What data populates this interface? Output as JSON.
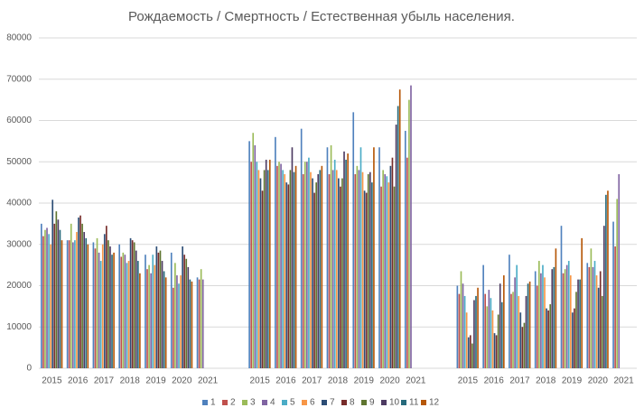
{
  "chart_data": {
    "type": "bar",
    "title": "Рождаемость / Смертность / Естественная убыль населения.",
    "categories": [
      "2015",
      "2016",
      "2017",
      "2018",
      "2019",
      "2020",
      "2021",
      "2015",
      "2016",
      "2017",
      "2018",
      "2019",
      "2020",
      "2021",
      "2015",
      "2016",
      "2017",
      "2018",
      "2019",
      "2020",
      "2021"
    ],
    "series": [
      {
        "name": "1",
        "color": "#4F81BD",
        "values": [
          35000,
          31000,
          30500,
          30000,
          27500,
          28000,
          22000,
          55000,
          56000,
          58000,
          53500,
          62000,
          53500,
          57500,
          20000,
          25000,
          27500,
          23500,
          34500,
          25500,
          35500
        ]
      },
      {
        "name": "2",
        "color": "#C0504D",
        "values": [
          32000,
          31000,
          29000,
          27000,
          24000,
          19500,
          21500,
          50000,
          49000,
          47000,
          47000,
          47000,
          44000,
          51000,
          18000,
          18000,
          18000,
          20000,
          23000,
          24500,
          29500
        ]
      },
      {
        "name": "3",
        "color": "#9BBB59",
        "values": [
          33500,
          35000,
          31500,
          28000,
          25000,
          25500,
          24000,
          57000,
          50000,
          50000,
          54000,
          49000,
          48000,
          65000,
          23500,
          15000,
          18500,
          26000,
          24000,
          29000,
          41000
        ]
      },
      {
        "name": "4",
        "color": "#8064A2",
        "values": [
          34000,
          30500,
          28000,
          27500,
          23000,
          22500,
          21500,
          54000,
          49500,
          50000,
          48000,
          48000,
          47000,
          68500,
          20500,
          19000,
          22000,
          23000,
          25000,
          24500,
          47000
        ]
      },
      {
        "name": "5",
        "color": "#4BACC6",
        "values": [
          32500,
          31000,
          26000,
          25500,
          27500,
          20500,
          null,
          50000,
          48000,
          51000,
          50500,
          53500,
          46500,
          null,
          17500,
          17000,
          25000,
          25000,
          26000,
          26000,
          null
        ]
      },
      {
        "name": "6",
        "color": "#F79646",
        "values": [
          30000,
          33000,
          30000,
          26000,
          25000,
          22500,
          null,
          48000,
          47000,
          47500,
          48000,
          47500,
          45000,
          null,
          13500,
          14000,
          17500,
          22000,
          22500,
          22500,
          null
        ]
      },
      {
        "name": "7",
        "color": "#2C4D75",
        "values": [
          40800,
          36500,
          32500,
          31500,
          29500,
          29500,
          null,
          46000,
          45000,
          46000,
          46000,
          43000,
          49000,
          null,
          7500,
          8500,
          13500,
          14500,
          13500,
          19500,
          null
        ]
      },
      {
        "name": "8",
        "color": "#772C2A",
        "values": [
          35000,
          37000,
          34500,
          31000,
          28000,
          27500,
          null,
          43000,
          44500,
          42500,
          44000,
          42500,
          51000,
          null,
          8000,
          8000,
          10000,
          14000,
          14500,
          23500,
          null
        ]
      },
      {
        "name": "9",
        "color": "#5F7530",
        "values": [
          38000,
          35000,
          31000,
          30500,
          28500,
          26500,
          null,
          48000,
          48000,
          45000,
          46000,
          47000,
          44000,
          null,
          6000,
          13000,
          11000,
          15500,
          18500,
          17500,
          null
        ]
      },
      {
        "name": "10",
        "color": "#4D3B62",
        "values": [
          36000,
          33000,
          29500,
          28500,
          26000,
          24500,
          null,
          50500,
          53500,
          47000,
          52500,
          47500,
          59000,
          null,
          16500,
          20500,
          17500,
          24000,
          21500,
          34500,
          null
        ]
      },
      {
        "name": "11",
        "color": "#276A7C",
        "values": [
          33500,
          31500,
          27500,
          26000,
          23500,
          21500,
          null,
          48000,
          47500,
          48000,
          50500,
          45000,
          63500,
          null,
          17500,
          16000,
          20500,
          24500,
          21500,
          42000,
          null
        ]
      },
      {
        "name": "12",
        "color": "#B65708",
        "values": [
          31000,
          30000,
          28000,
          23000,
          22000,
          21000,
          null,
          50500,
          49000,
          49000,
          52000,
          53500,
          67500,
          null,
          19500,
          22500,
          21000,
          29000,
          31500,
          43000,
          null
        ]
      }
    ],
    "ylim": [
      0,
      80000
    ],
    "yticks": [
      0,
      10000,
      20000,
      30000,
      40000,
      50000,
      60000,
      70000,
      80000
    ],
    "grid": true,
    "legend": "bottom"
  }
}
